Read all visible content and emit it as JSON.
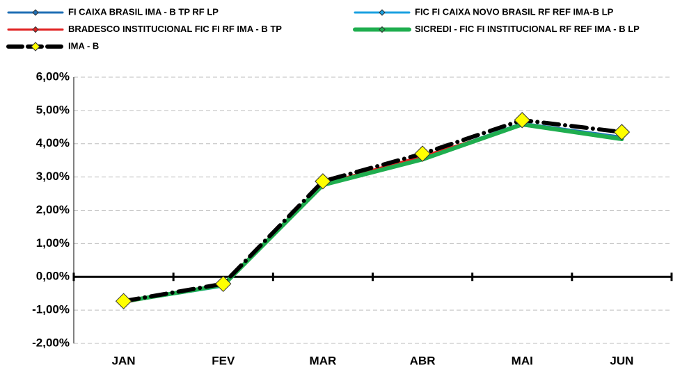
{
  "chart_data": {
    "type": "line",
    "categories": [
      "JAN",
      "FEV",
      "MAR",
      "ABR",
      "MAI",
      "JUN"
    ],
    "series": [
      {
        "name": "FI CAIXA BRASIL IMA - B TP RF LP",
        "color": "#1f6fb5",
        "values": [
          -0.75,
          -0.28,
          2.78,
          3.57,
          4.62,
          4.21
        ]
      },
      {
        "name": "FIC FI CAIXA NOVO BRASIL RF REF IMA-B LP",
        "color": "#1aa0e0",
        "values": [
          -0.76,
          -0.29,
          2.77,
          3.55,
          4.6,
          4.18
        ]
      },
      {
        "name": "BRADESCO INSTITUCIONAL FIC FI RF IMA - B TP",
        "color": "#e02020",
        "values": [
          -0.78,
          -0.22,
          2.8,
          3.63,
          4.55,
          4.15
        ]
      },
      {
        "name": "SICREDI - FIC FI INSTITUCIONAL RF REF IMA - B LP",
        "color": "#1fae4f",
        "values": [
          -0.74,
          -0.25,
          2.76,
          3.53,
          4.58,
          4.14
        ]
      },
      {
        "name": "IMA - B",
        "color": "#000000",
        "values": [
          -0.73,
          -0.21,
          2.87,
          3.7,
          4.71,
          4.35
        ]
      }
    ],
    "ylim": [
      -2,
      6
    ],
    "yticks": [
      {
        "value": -2,
        "label": "-2,00%"
      },
      {
        "value": -1,
        "label": "-1,00%"
      },
      {
        "value": 0,
        "label": "0,00%"
      },
      {
        "value": 1,
        "label": "1,00%"
      },
      {
        "value": 2,
        "label": "2,00%"
      },
      {
        "value": 3,
        "label": "3,00%"
      },
      {
        "value": 4,
        "label": "4,00%"
      },
      {
        "value": 5,
        "label": "5,00%"
      },
      {
        "value": 6,
        "label": "6,00%"
      }
    ],
    "grid": true,
    "legend": "top"
  }
}
